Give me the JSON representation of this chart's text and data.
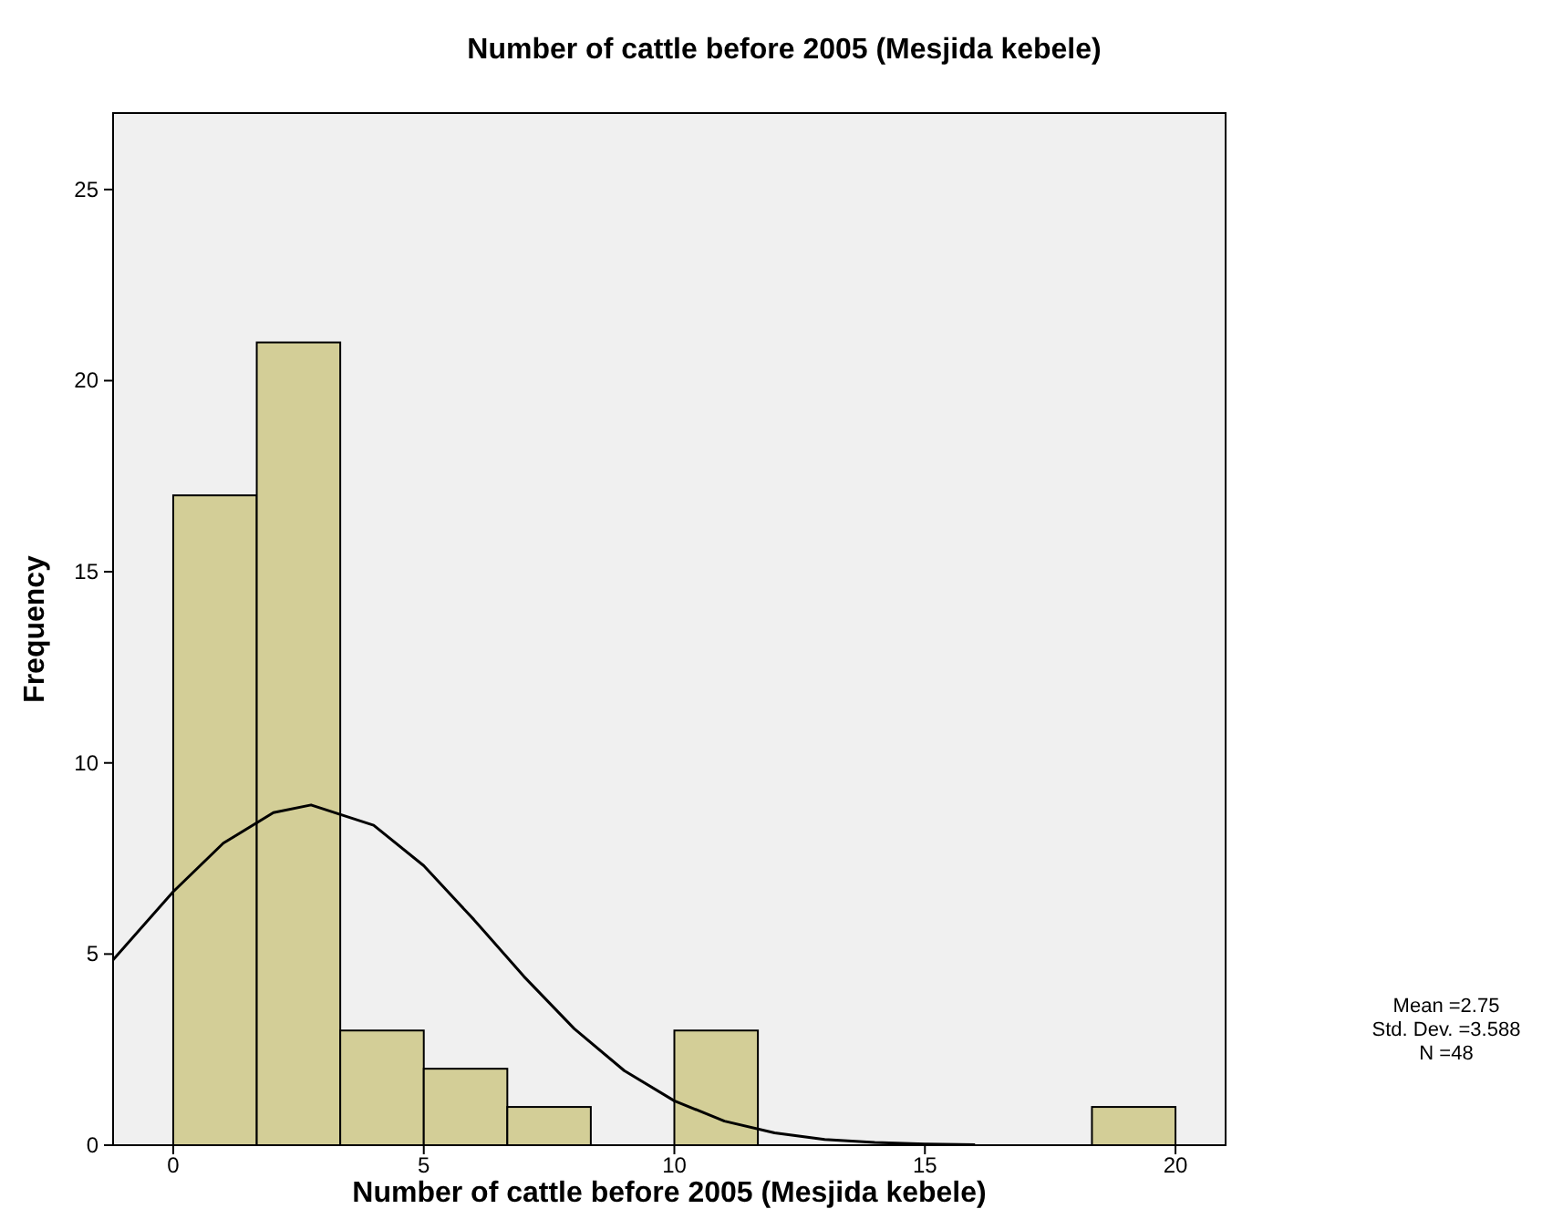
{
  "chart_data": {
    "type": "histogram",
    "title": "Number of cattle before 2005 (Mesjida kebele)",
    "xlabel": "Number of cattle before 2005 (Mesjida kebele)",
    "ylabel": "Frequency",
    "bins": [
      0,
      1.667,
      3.333,
      5,
      6.667,
      8.333,
      10,
      11.667,
      13.333,
      15,
      16.667,
      18.333,
      20
    ],
    "series": [
      {
        "color": "#d3ce97",
        "values": [
          17,
          21,
          3,
          2,
          1,
          0,
          3,
          0,
          0,
          0,
          0,
          1
        ]
      },
      {
        "type": "line",
        "color": "#000000",
        "x": [
          -1.2,
          0,
          1,
          2,
          2.75,
          4,
          5,
          6,
          7,
          8,
          9,
          10,
          11,
          12,
          13,
          14,
          15,
          16
        ],
        "values": [
          4.85,
          6.63,
          7.9,
          8.7,
          8.9,
          8.37,
          7.31,
          5.9,
          4.41,
          3.05,
          1.95,
          1.16,
          0.63,
          0.32,
          0.15,
          0.07,
          0.03,
          0.01
        ]
      }
    ],
    "xlim": [
      -1.2,
      21
    ],
    "xticks": [
      0,
      5,
      10,
      15,
      20
    ],
    "ylim": [
      0,
      27
    ],
    "yticks": [
      0,
      5,
      10,
      15,
      20,
      25
    ],
    "annotations": [
      "Mean =2.75",
      "Std. Dev. =3.588",
      "N =48"
    ]
  }
}
